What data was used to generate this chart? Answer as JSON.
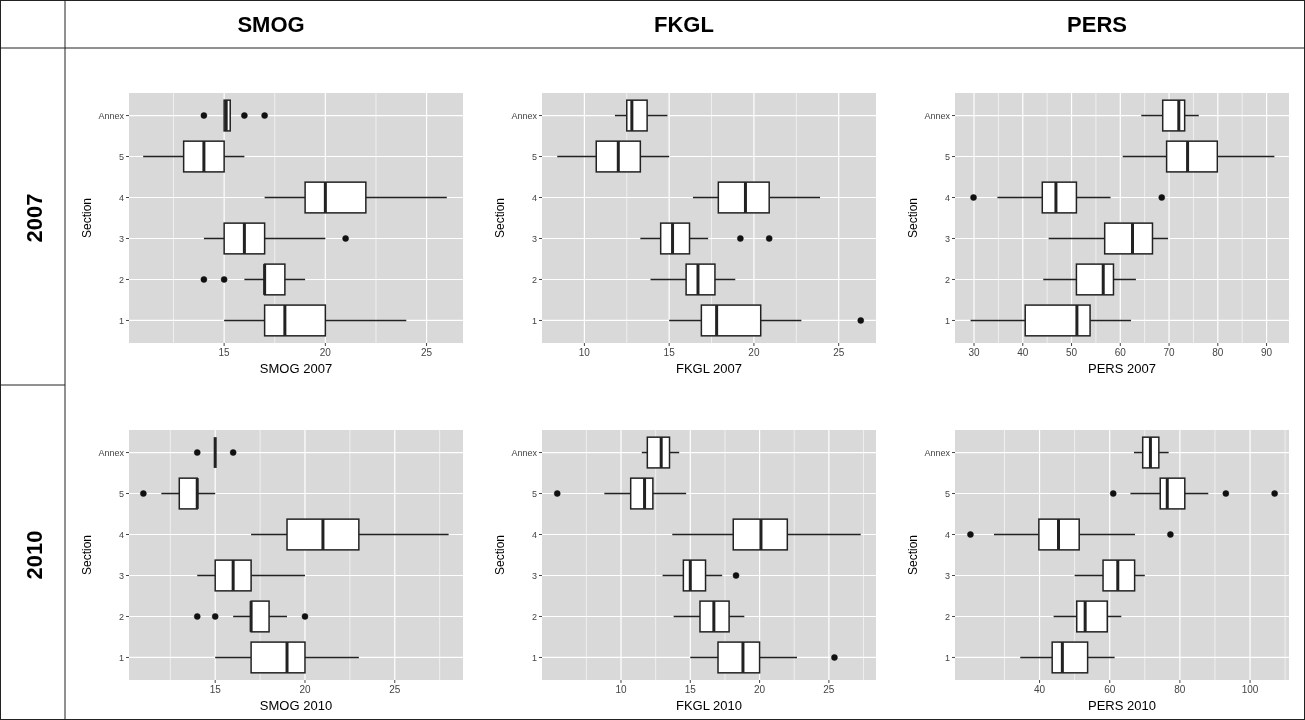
{
  "chart_data": [
    {
      "type": "box",
      "orientation": "horizontal",
      "title": "SMOG",
      "annotations": [
        "2007"
      ],
      "xlabel": "SMOG  2007",
      "ylabel": "Section",
      "categories": [
        "Annex",
        "5",
        "4",
        "3",
        "2",
        "1"
      ],
      "xlim": [
        10.3,
        26.8
      ],
      "xticks": [
        {
          "value": 12.5,
          "label": null
        },
        15,
        {
          "value": 17.5,
          "label": null
        },
        20,
        {
          "value": 22.5,
          "label": null
        },
        25
      ],
      "grid": true,
      "boxes": [
        {
          "low": 15,
          "q1": 15,
          "median": 15.1,
          "q3": 15.3,
          "high": 15.3,
          "outliers": [
            14,
            16,
            17
          ]
        },
        {
          "low": 11,
          "q1": 13,
          "median": 14,
          "q3": 15,
          "high": 16
        },
        {
          "low": 17,
          "q1": 19,
          "median": 20,
          "q3": 22,
          "high": 26
        },
        {
          "low": 14,
          "q1": 15,
          "median": 16,
          "q3": 17,
          "high": 20,
          "outliers": [
            21
          ]
        },
        {
          "low": 16,
          "q1": 17,
          "median": 17,
          "q3": 18,
          "high": 19,
          "outliers": [
            14,
            15
          ]
        },
        {
          "low": 15,
          "q1": 17,
          "median": 18,
          "q3": 20,
          "high": 24
        }
      ]
    },
    {
      "type": "box",
      "orientation": "horizontal",
      "title": "FKGL",
      "xlabel": "FKGL 2007",
      "ylabel": "Section",
      "categories": [
        "Annex",
        "5",
        "4",
        "3",
        "2",
        "1"
      ],
      "xlim": [
        7.5,
        27.2
      ],
      "xticks": [
        10,
        {
          "value": 12.5,
          "label": null
        },
        15,
        {
          "value": 17.5,
          "label": null
        },
        20,
        {
          "value": 22.5,
          "label": null
        },
        25
      ],
      "grid": true,
      "boxes": [
        {
          "low": 11.8,
          "q1": 12.5,
          "median": 12.8,
          "q3": 13.7,
          "high": 14.9
        },
        {
          "low": 8.4,
          "q1": 10.7,
          "median": 12,
          "q3": 13.3,
          "high": 15
        },
        {
          "low": 16.4,
          "q1": 17.9,
          "median": 19.5,
          "q3": 20.9,
          "high": 23.9
        },
        {
          "low": 13.3,
          "q1": 14.5,
          "median": 15.2,
          "q3": 16.2,
          "high": 17.3,
          "outliers": [
            19.2,
            20.9
          ]
        },
        {
          "low": 13.9,
          "q1": 16,
          "median": 16.7,
          "q3": 17.7,
          "high": 18.9
        },
        {
          "low": 15,
          "q1": 16.9,
          "median": 17.8,
          "q3": 20.4,
          "high": 22.8,
          "outliers": [
            26.3
          ]
        }
      ]
    },
    {
      "type": "box",
      "orientation": "horizontal",
      "title": "PERS",
      "xlabel": "PERS 2007",
      "ylabel": "Section",
      "categories": [
        "Annex",
        "5",
        "4",
        "3",
        "2",
        "1"
      ],
      "xlim": [
        26.1,
        94.6
      ],
      "xticks": [
        30,
        {
          "value": 35,
          "label": null
        },
        40,
        {
          "value": 45,
          "label": null
        },
        50,
        {
          "value": 55,
          "label": null
        },
        60,
        {
          "value": 65,
          "label": null
        },
        70,
        {
          "value": 75,
          "label": null
        },
        80,
        {
          "value": 85,
          "label": null
        },
        90
      ],
      "grid": true,
      "boxes": [
        {
          "low": 64.3,
          "q1": 68.7,
          "median": 72,
          "q3": 73.2,
          "high": 76.1
        },
        {
          "low": 60.5,
          "q1": 69.5,
          "median": 73.8,
          "q3": 79.9,
          "high": 91.6
        },
        {
          "low": 34.8,
          "q1": 44,
          "median": 46.8,
          "q3": 51,
          "high": 58,
          "outliers": [
            29.9,
            68.5
          ]
        },
        {
          "low": 45.3,
          "q1": 56.8,
          "median": 62.5,
          "q3": 66.6,
          "high": 69.8
        },
        {
          "low": 44.2,
          "q1": 51,
          "median": 56.5,
          "q3": 58.6,
          "high": 63.2
        },
        {
          "low": 29.3,
          "q1": 40.5,
          "median": 51.1,
          "q3": 53.8,
          "high": 62.2
        }
      ]
    },
    {
      "type": "box",
      "orientation": "horizontal",
      "annotations": [
        "2010"
      ],
      "xlabel": "SMOG 2010",
      "ylabel": "Section",
      "categories": [
        "Annex",
        "5",
        "4",
        "3",
        "2",
        "1"
      ],
      "xlim": [
        10.2,
        28.8
      ],
      "xticks": [
        {
          "value": 12.5,
          "label": null
        },
        15,
        {
          "value": 17.5,
          "label": null
        },
        20,
        {
          "value": 22.5,
          "label": null
        },
        25,
        {
          "value": 27.5,
          "label": null
        }
      ],
      "grid": true,
      "boxes": [
        {
          "low": 15,
          "q1": 15,
          "median": 15,
          "q3": 15,
          "high": 15,
          "outliers": [
            14,
            16
          ]
        },
        {
          "low": 12,
          "q1": 13,
          "median": 14,
          "q3": 14,
          "high": 15,
          "outliers": [
            11
          ]
        },
        {
          "low": 17,
          "q1": 19,
          "median": 21,
          "q3": 23,
          "high": 28
        },
        {
          "low": 14,
          "q1": 15,
          "median": 16,
          "q3": 17,
          "high": 20
        },
        {
          "low": 16,
          "q1": 17,
          "median": 17,
          "q3": 18,
          "high": 19,
          "outliers": [
            14,
            15,
            20
          ]
        },
        {
          "low": 15,
          "q1": 17,
          "median": 19,
          "q3": 20,
          "high": 23
        }
      ]
    },
    {
      "type": "box",
      "orientation": "horizontal",
      "xlabel": "FKGL 2010",
      "ylabel": "Section",
      "categories": [
        "Annex",
        "5",
        "4",
        "3",
        "2",
        "1"
      ],
      "xlim": [
        4.3,
        28.4
      ],
      "xticks": [
        {
          "value": 7.5,
          "label": null
        },
        10,
        {
          "value": 12.5,
          "label": null
        },
        15,
        {
          "value": 17.5,
          "label": null
        },
        20,
        {
          "value": 22.5,
          "label": null
        },
        25,
        {
          "value": 27.5,
          "label": null
        }
      ],
      "grid": true,
      "boxes": [
        {
          "low": 11.5,
          "q1": 11.9,
          "median": 12.9,
          "q3": 13.5,
          "high": 14.2
        },
        {
          "low": 8.8,
          "q1": 10.7,
          "median": 11.7,
          "q3": 12.3,
          "high": 14.7,
          "outliers": [
            5.4
          ]
        },
        {
          "low": 13.7,
          "q1": 18.1,
          "median": 20.1,
          "q3": 22,
          "high": 27.3
        },
        {
          "low": 13,
          "q1": 14.5,
          "median": 15,
          "q3": 16.1,
          "high": 17.3,
          "outliers": [
            18.3
          ]
        },
        {
          "low": 13.8,
          "q1": 15.7,
          "median": 16.7,
          "q3": 17.8,
          "high": 18.9
        },
        {
          "low": 15,
          "q1": 17,
          "median": 18.8,
          "q3": 20,
          "high": 22.7,
          "outliers": [
            25.4
          ]
        }
      ]
    },
    {
      "type": "box",
      "orientation": "horizontal",
      "xlabel": "PERS 2010",
      "ylabel": "Section",
      "categories": [
        "Annex",
        "5",
        "4",
        "3",
        "2",
        "1"
      ],
      "xlim": [
        15.9,
        111.1
      ],
      "xticks": [
        {
          "value": 30,
          "label": null
        },
        40,
        {
          "value": 50,
          "label": null
        },
        60,
        {
          "value": 70,
          "label": null
        },
        80,
        {
          "value": 90,
          "label": null
        },
        100,
        {
          "value": 110,
          "label": null
        }
      ],
      "grid": true,
      "boxes": [
        {
          "low": 66.9,
          "q1": 69.4,
          "median": 71.6,
          "q3": 74,
          "high": 76.8
        },
        {
          "low": 65.9,
          "q1": 74.4,
          "median": 76.4,
          "q3": 81.4,
          "high": 88.1,
          "outliers": [
            61,
            93.1,
            107
          ]
        },
        {
          "low": 27,
          "q1": 39.8,
          "median": 45.4,
          "q3": 51.3,
          "high": 67.2,
          "outliers": [
            20.3,
            77.3
          ]
        },
        {
          "low": 50,
          "q1": 58.1,
          "median": 62.3,
          "q3": 67.1,
          "high": 70
        },
        {
          "low": 44,
          "q1": 50.6,
          "median": 53,
          "q3": 59.3,
          "high": 63.3
        },
        {
          "low": 34.5,
          "q1": 43.6,
          "median": 46.5,
          "q3": 53.7,
          "high": 61.4
        }
      ]
    }
  ]
}
